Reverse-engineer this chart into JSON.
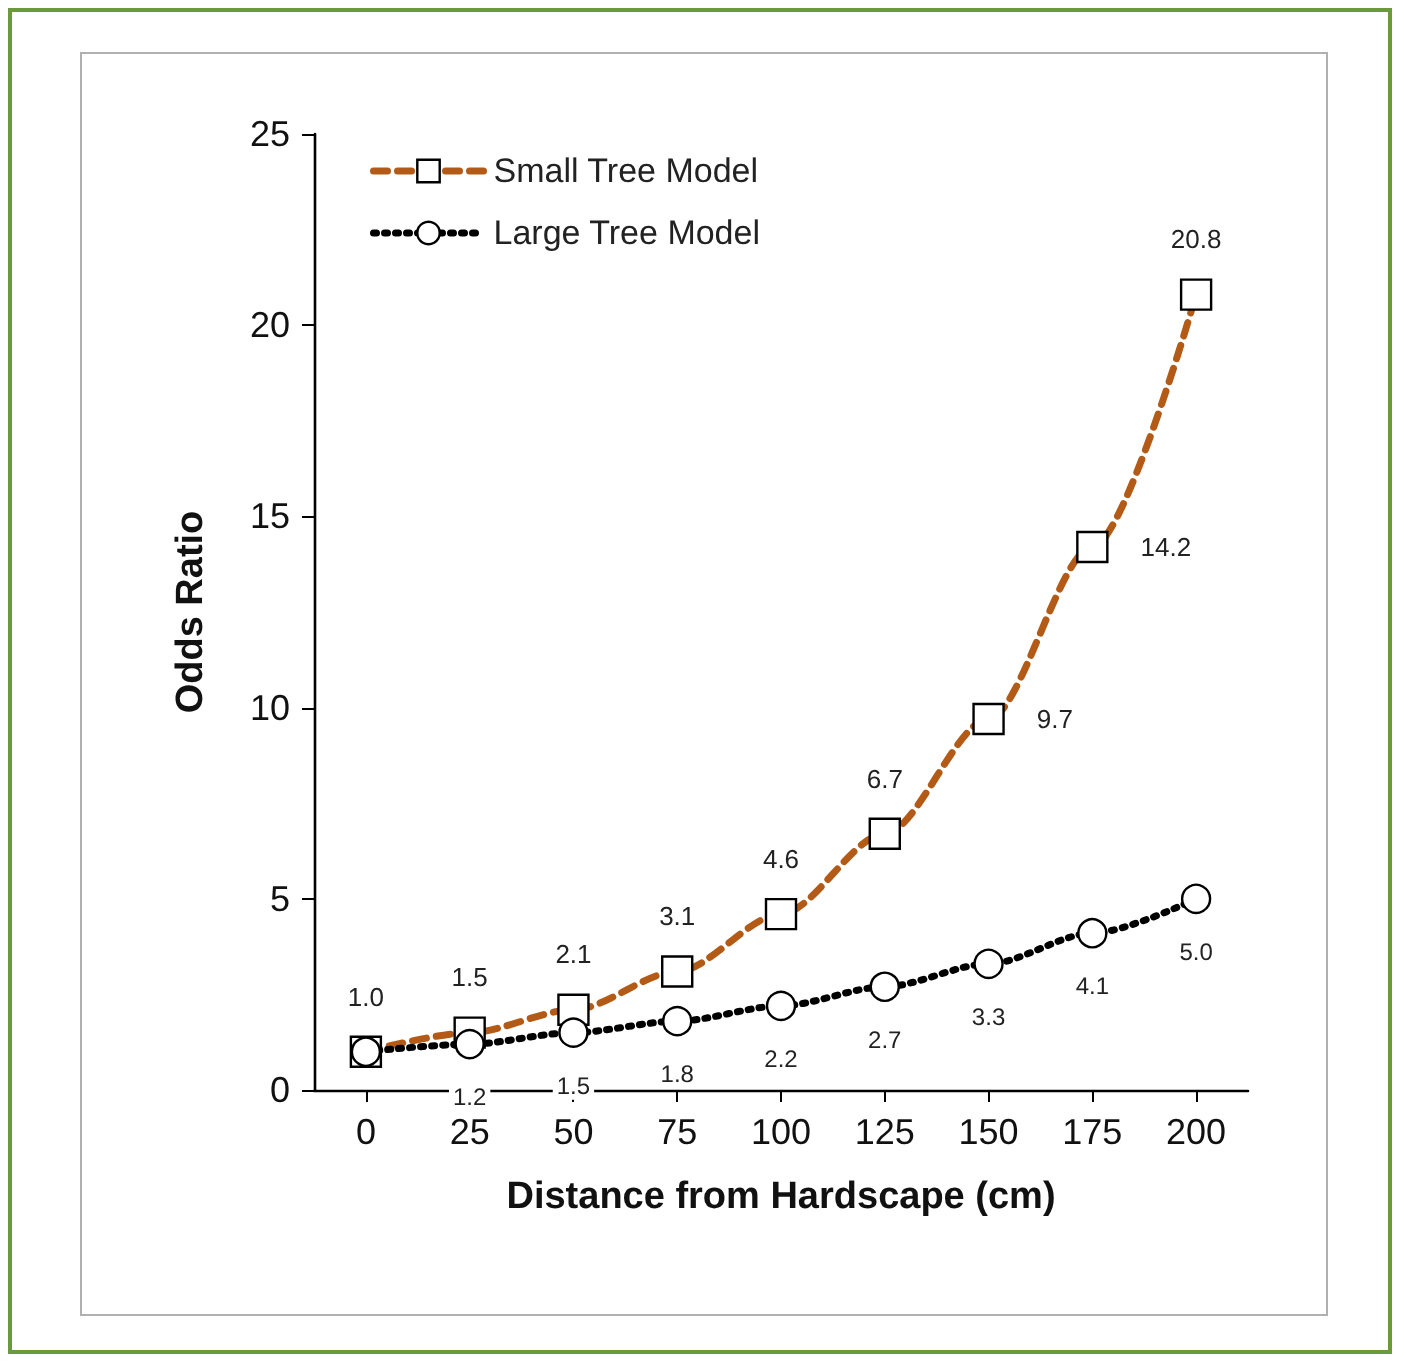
{
  "chart_data": {
    "type": "line",
    "xlabel": "Distance from Hardscape (cm)",
    "ylabel": "Odds Ratio",
    "x": [
      0,
      25,
      50,
      75,
      100,
      125,
      150,
      175,
      200
    ],
    "series": [
      {
        "name": "Small Tree Model",
        "color": "#b35a16",
        "marker": "square",
        "line_style": "dashed",
        "values": [
          1.0,
          1.5,
          2.1,
          3.1,
          4.6,
          6.7,
          9.7,
          14.2,
          20.8
        ],
        "value_labels": [
          "1.0",
          "1.5",
          "2.1",
          "3.1",
          "4.6",
          "6.7",
          "9.7",
          "14.2",
          "20.8"
        ]
      },
      {
        "name": "Large Tree Model",
        "color": "#000000",
        "marker": "circle",
        "line_style": "dotted",
        "values": [
          1.0,
          1.2,
          1.5,
          1.8,
          2.2,
          2.7,
          3.3,
          4.1,
          5.0
        ],
        "value_labels": [
          null,
          "1.2",
          "1.5",
          "1.8",
          "2.2",
          "2.7",
          "3.3",
          "4.1",
          "5.0"
        ]
      }
    ],
    "xlim": [
      -12.5,
      212.5
    ],
    "xticks": [
      0,
      25,
      50,
      75,
      100,
      125,
      150,
      175,
      200
    ],
    "ylim": [
      0,
      25
    ],
    "yticks": [
      0,
      5,
      10,
      15,
      20,
      25
    ],
    "grid": false,
    "legend": "top left"
  }
}
